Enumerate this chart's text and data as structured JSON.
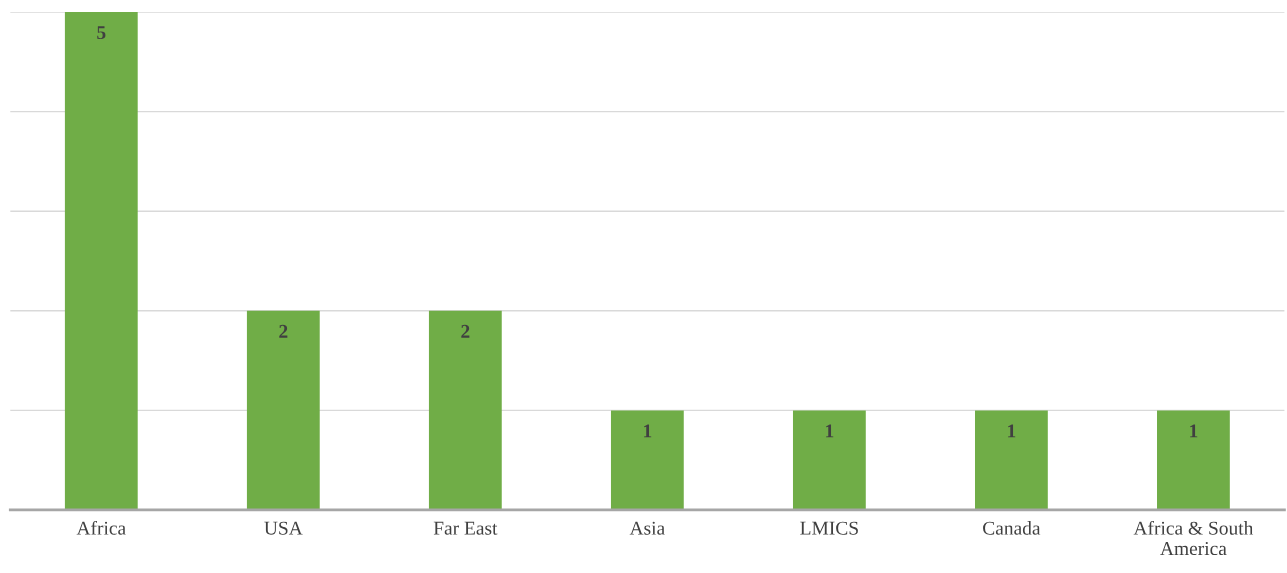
{
  "chart_data": {
    "type": "bar",
    "categories": [
      "Africa",
      "USA",
      "Far East",
      "Asia",
      "LMICS",
      "Canada",
      "Africa & South America"
    ],
    "values": [
      5,
      2,
      2,
      1,
      1,
      1,
      1
    ],
    "color": "#70ad47",
    "ylim": [
      0,
      5
    ],
    "yticks": [
      {
        "value": 0,
        "label": null
      },
      {
        "value": 1,
        "label": null
      },
      {
        "value": 2,
        "label": null
      },
      {
        "value": 3,
        "label": null
      },
      {
        "value": 4,
        "label": null
      },
      {
        "value": 5,
        "label": null
      }
    ],
    "tick_labels": "x",
    "grid": "y",
    "data_labels": true
  }
}
